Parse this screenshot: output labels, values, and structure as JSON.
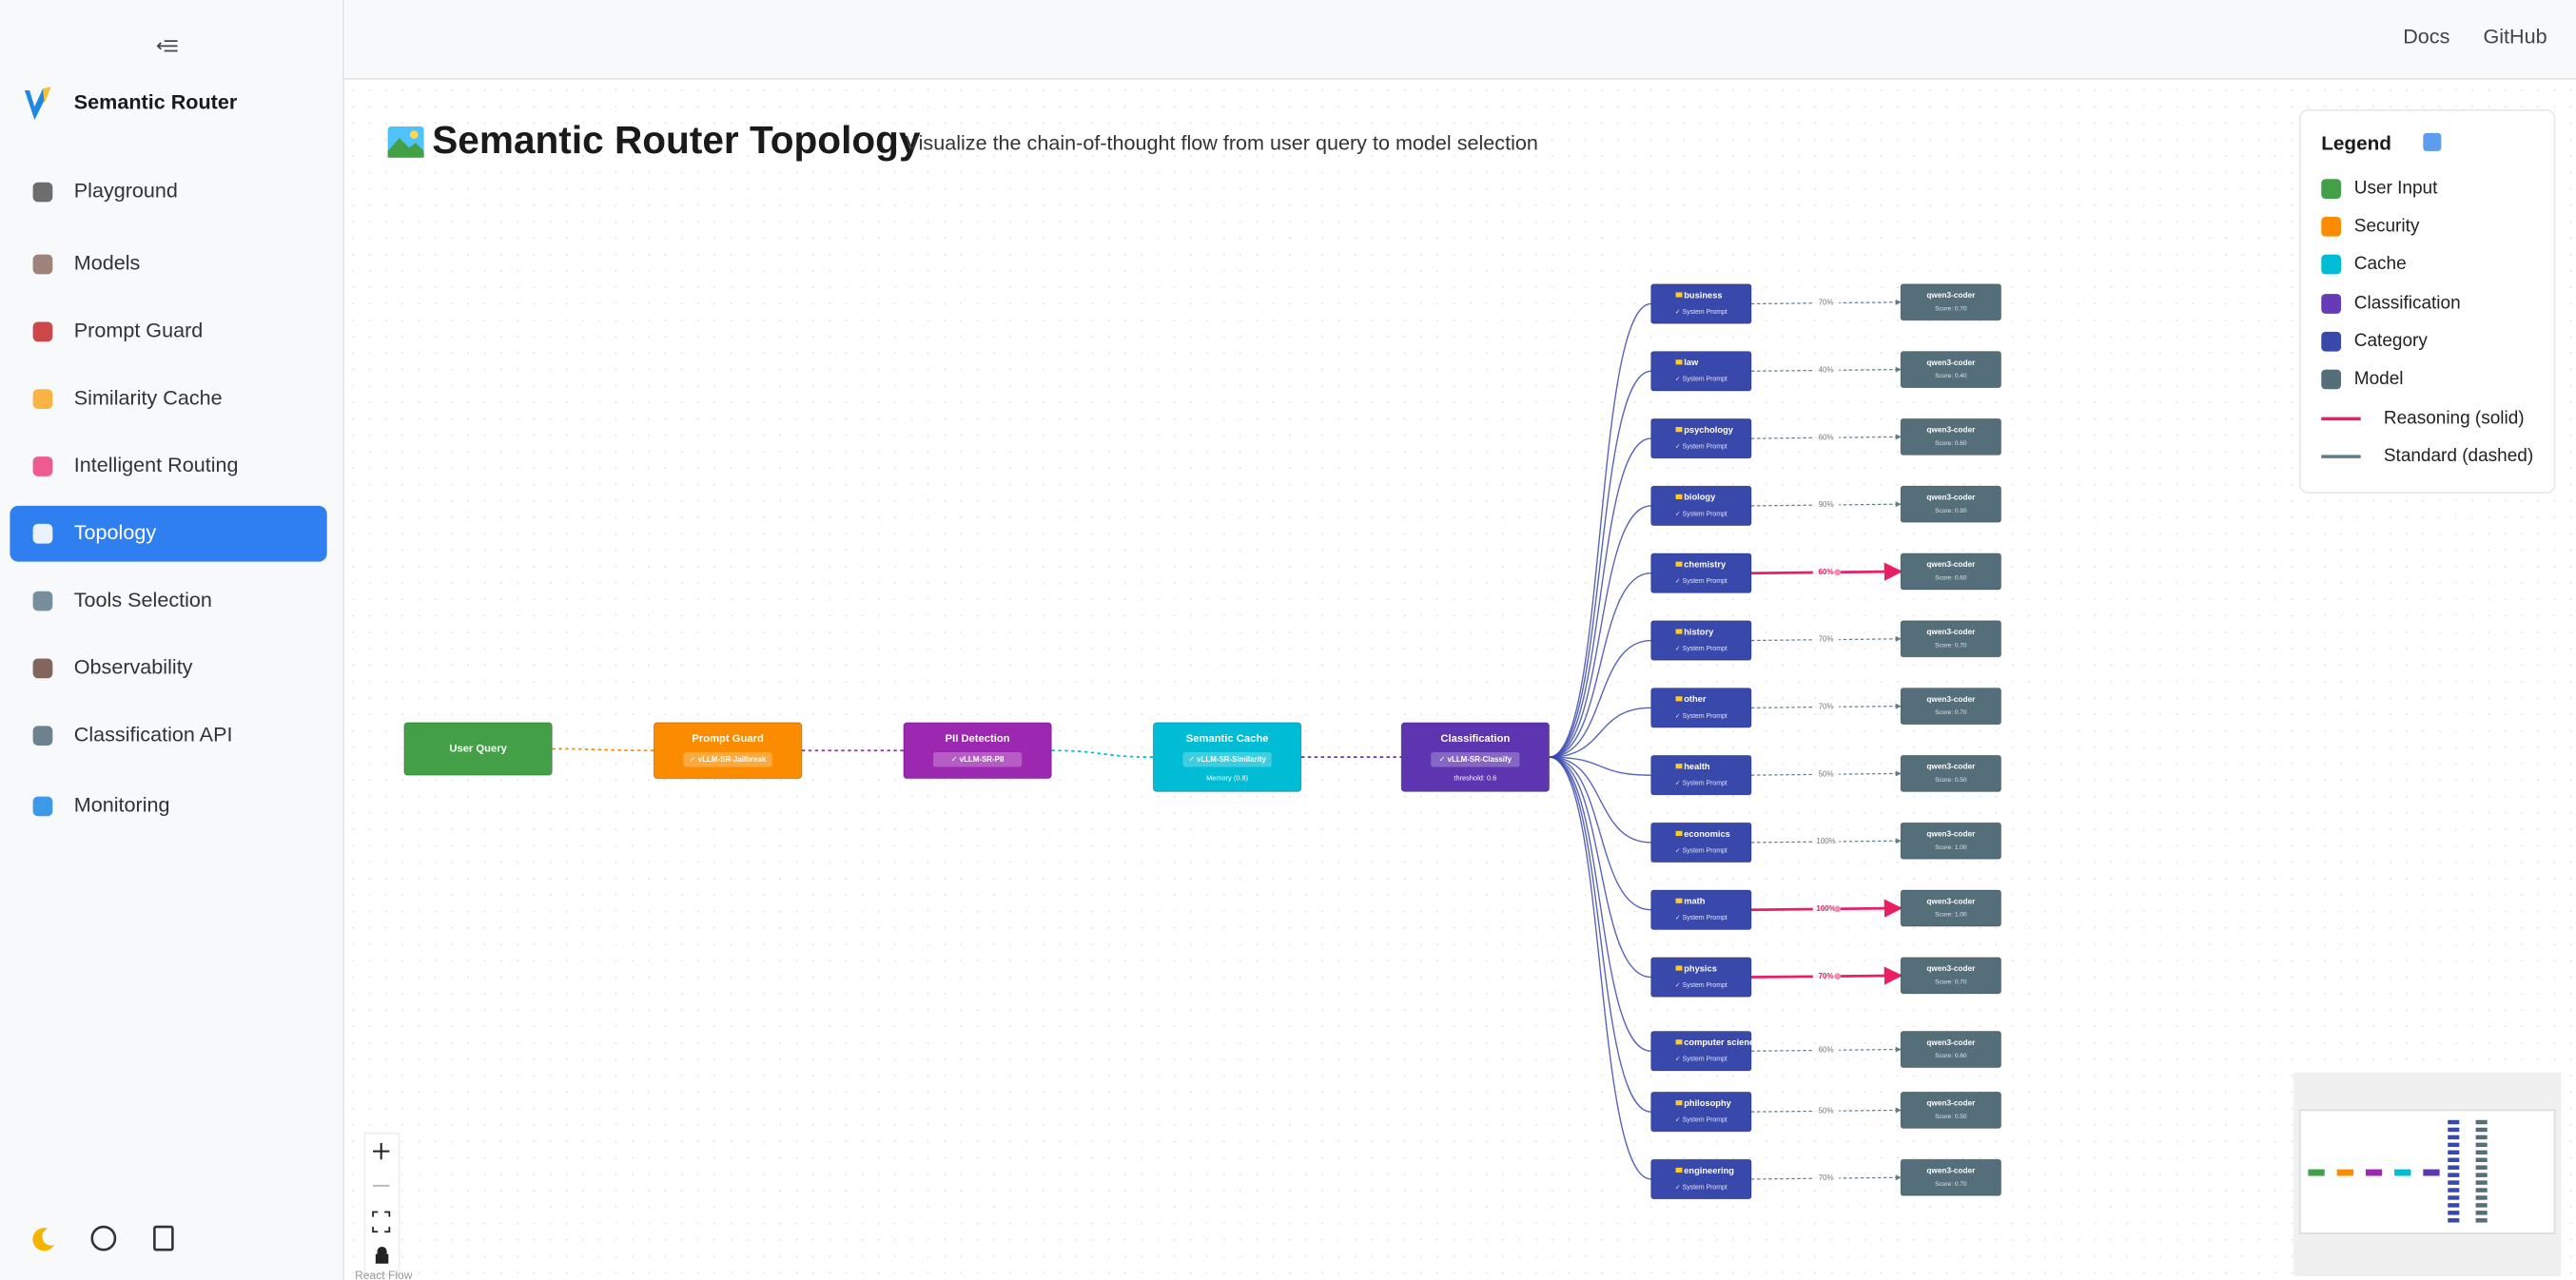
{
  "sidebar": {
    "brand": "Semantic Router",
    "active": 5,
    "nav": [
      "Playground",
      "Models",
      "Prompt Guard",
      "Similarity Cache",
      "Intelligent Routing",
      "Topology",
      "Tools Selection",
      "Observability",
      "Classification API",
      "Monitoring"
    ]
  },
  "topbar": {
    "links": [
      "Docs",
      "GitHub"
    ]
  },
  "header": {
    "title": "Semantic Router Topology",
    "subtitle": "Visualize the chain-of-thought flow from user query to model selection"
  },
  "legend": {
    "title": "Legend",
    "items": [
      {
        "label": "User Input",
        "color": "#43a047",
        "kind": "swatch"
      },
      {
        "label": "Security",
        "color": "#fb8c00",
        "kind": "swatch"
      },
      {
        "label": "Cache",
        "color": "#00bcd4",
        "kind": "swatch"
      },
      {
        "label": "Classification",
        "color": "#673ab7",
        "kind": "swatch"
      },
      {
        "label": "Category",
        "color": "#3949ab",
        "kind": "swatch"
      },
      {
        "label": "Model",
        "color": "#546e7a",
        "kind": "swatch"
      },
      {
        "label": "Reasoning (solid)",
        "color": "#e91e63",
        "kind": "line"
      },
      {
        "label": "Standard (dashed)",
        "color": "#607d8b",
        "kind": "line"
      }
    ]
  },
  "pipeline": [
    {
      "label": "User Query",
      "color": "#43a047"
    },
    {
      "label": "Prompt Guard",
      "badge": "✓ vLLM-SR-Jailbreak",
      "color": "#fb8c00"
    },
    {
      "label": "PII Detection",
      "badge": "✓ vLLM-SR-PII",
      "color": "#9c27b0"
    },
    {
      "label": "Semantic Cache",
      "badge": "✓ vLLM-SR-Similarity",
      "note": "Memory (0.8)",
      "color": "#00bcd4"
    },
    {
      "label": "Classification",
      "badge": "✓ vLLM-SR-Classify",
      "note": "threshold: 0.6",
      "color": "#5e35b1"
    }
  ],
  "categories": [
    {
      "name": "business",
      "prompt": "✓ System Prompt",
      "edge": "70%",
      "model": "qwen3-coder",
      "score": "Score: 0.70",
      "reasoning": false
    },
    {
      "name": "law",
      "prompt": "✓ System Prompt",
      "edge": "40%",
      "model": "qwen3-coder",
      "score": "Score: 0.40",
      "reasoning": false
    },
    {
      "name": "psychology",
      "prompt": "✓ System Prompt",
      "edge": "60%",
      "model": "qwen3-coder",
      "score": "Score: 0.60",
      "reasoning": false
    },
    {
      "name": "biology",
      "prompt": "✓ System Prompt",
      "edge": "90%",
      "model": "qwen3-coder",
      "score": "Score: 0.90",
      "reasoning": false
    },
    {
      "name": "chemistry",
      "prompt": "✓ System Prompt",
      "edge": "60%",
      "model": "qwen3-coder",
      "score": "Score: 0.60",
      "reasoning": true
    },
    {
      "name": "history",
      "prompt": "✓ System Prompt",
      "edge": "70%",
      "model": "qwen3-coder",
      "score": "Score: 0.70",
      "reasoning": false
    },
    {
      "name": "other",
      "prompt": "✓ System Prompt",
      "edge": "70%",
      "model": "qwen3-coder",
      "score": "Score: 0.70",
      "reasoning": false
    },
    {
      "name": "health",
      "prompt": "✓ System Prompt",
      "edge": "50%",
      "model": "qwen3-coder",
      "score": "Score: 0.50",
      "reasoning": false
    },
    {
      "name": "economics",
      "prompt": "✓ System Prompt",
      "edge": "100%",
      "model": "qwen3-coder",
      "score": "Score: 1.00",
      "reasoning": false
    },
    {
      "name": "math",
      "prompt": "✓ System Prompt",
      "edge": "100%",
      "model": "qwen3-coder",
      "score": "Score: 1.00",
      "reasoning": true
    },
    {
      "name": "physics",
      "prompt": "✓ System Prompt",
      "edge": "70%",
      "model": "qwen3-coder",
      "score": "Score: 0.70",
      "reasoning": true
    },
    {
      "name": "computer science",
      "prompt": "✓ System Prompt",
      "edge": "60%",
      "model": "qwen3-coder",
      "score": "Score: 0.60",
      "reasoning": false
    },
    {
      "name": "philosophy",
      "prompt": "✓ System Prompt",
      "edge": "50%",
      "model": "qwen3-coder",
      "score": "Score: 0.50",
      "reasoning": false
    },
    {
      "name": "engineering",
      "prompt": "✓ System Prompt",
      "edge": "70%",
      "model": "qwen3-coder",
      "score": "Score: 0.70",
      "reasoning": false
    }
  ],
  "controls": {
    "attribution": "React Flow"
  }
}
